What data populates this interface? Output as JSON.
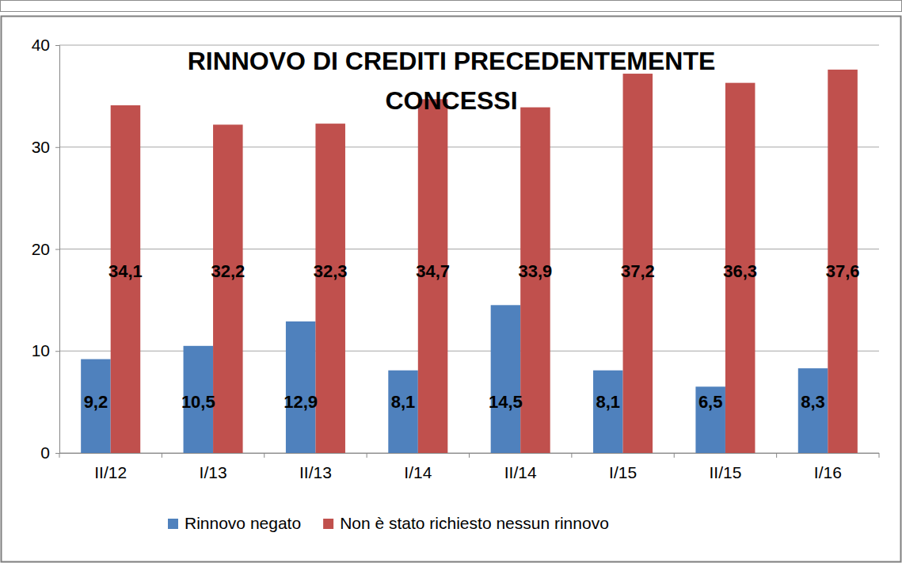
{
  "chart_data": {
    "type": "bar",
    "title": "RINNOVO DI CREDITI PRECEDENTEMENTE CONCESSI",
    "categories": [
      "II/12",
      "I/13",
      "II/13",
      "I/14",
      "II/14",
      "I/15",
      "II/15",
      "I/16"
    ],
    "series": [
      {
        "name": "Rinnovo negato",
        "color": "#4f81bd",
        "values": [
          9.2,
          10.5,
          12.9,
          8.1,
          14.5,
          8.1,
          6.5,
          8.3
        ],
        "value_labels": [
          "9,2",
          "10,5",
          "12,9",
          "8,1",
          "14,5",
          "8,1",
          "6,5",
          "8,3"
        ]
      },
      {
        "name": "Non è stato richiesto nessun rinnovo",
        "color": "#c0504d",
        "values": [
          34.1,
          32.2,
          32.3,
          34.7,
          33.9,
          37.2,
          36.3,
          37.6
        ],
        "value_labels": [
          "34,1",
          "32,2",
          "32,3",
          "34,7",
          "33,9",
          "37,2",
          "36,3",
          "37,6"
        ]
      }
    ],
    "ylim": [
      0,
      40
    ],
    "yticks": [
      0,
      10,
      20,
      30,
      40
    ],
    "grid": true,
    "legend": "bottom",
    "data_labels": true
  }
}
